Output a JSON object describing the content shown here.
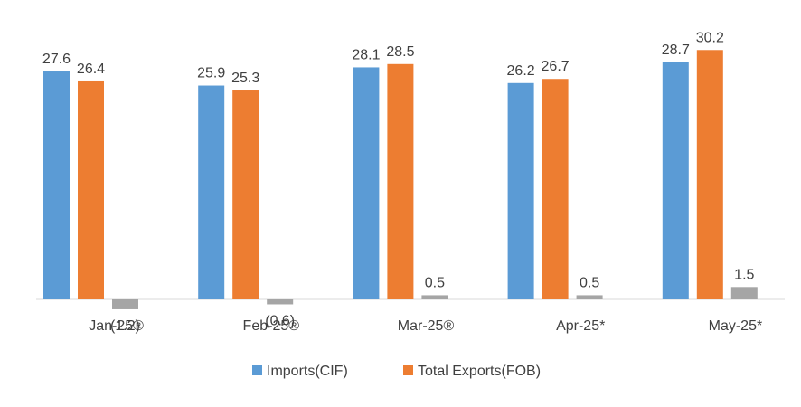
{
  "chart_data": {
    "type": "bar",
    "categories": [
      "Jan-25®",
      "Feb-25®",
      "Mar-25®",
      "Apr-25*",
      "May-25*"
    ],
    "series": [
      {
        "name": "Imports(CIF)",
        "color": "#5B9BD5",
        "values": [
          27.6,
          25.9,
          28.1,
          26.2,
          28.7
        ],
        "labels": [
          "27.6",
          "25.9",
          "28.1",
          "26.2",
          "28.7"
        ]
      },
      {
        "name": "Total Exports(FOB)",
        "color": "#ED7D31",
        "values": [
          26.4,
          25.3,
          28.5,
          26.7,
          30.2
        ],
        "labels": [
          "26.4",
          "25.3",
          "28.5",
          "26.7",
          "30.2"
        ]
      },
      {
        "name": "",
        "color": "#A5A5A5",
        "values": [
          -1.2,
          -0.6,
          0.5,
          0.5,
          1.5
        ],
        "labels": [
          "(1.2)",
          "(0.6)",
          "0.5",
          "0.5",
          "1.5"
        ]
      }
    ],
    "title": "",
    "xlabel": "",
    "ylabel": "",
    "grid": false,
    "legend_position": "bottom"
  }
}
